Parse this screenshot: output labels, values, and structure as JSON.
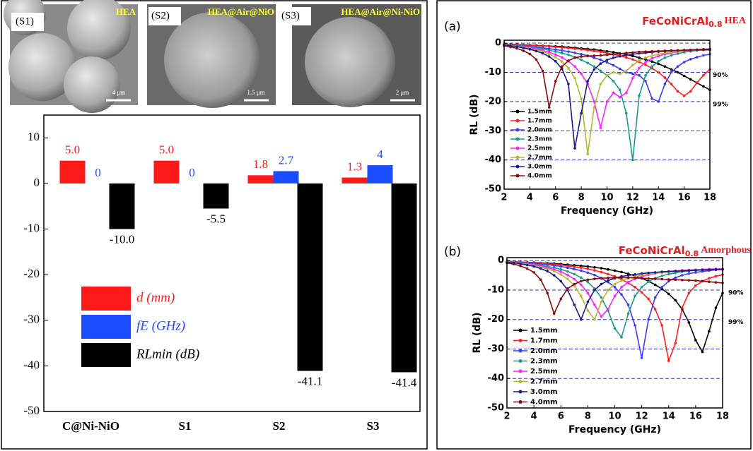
{
  "images": [
    {
      "label": "(S1)",
      "caption": "HEA",
      "scale": "4 μm"
    },
    {
      "label": "(S2)",
      "caption": "HEA@Air@NiO",
      "scale": "1.5 μm"
    },
    {
      "label": "(S3)",
      "caption": "HEA@Air@Ni-NiO",
      "scale": "2 μm"
    }
  ],
  "chart_data": [
    {
      "type": "bar",
      "categories": [
        "C@Ni-NiO",
        "S1",
        "S2",
        "S3"
      ],
      "ylim": [
        -50,
        15
      ],
      "yticks": [
        -50,
        -40,
        -30,
        -20,
        -10,
        0,
        10
      ],
      "grid": false,
      "legend": "lower-left",
      "series": [
        {
          "name": "d (mm)",
          "color": "#ff1a1a",
          "values": [
            5.0,
            5.0,
            1.8,
            1.3
          ],
          "value_labels": [
            "5.0",
            "5.0",
            "1.8",
            "1.3"
          ]
        },
        {
          "name": "fE (GHz)",
          "color": "#1a4dff",
          "values": [
            0,
            0,
            2.7,
            4
          ]
        },
        {
          "name": "RLmin (dB)",
          "color": "#000000",
          "values": [
            -10.0,
            -5.5,
            -41.1,
            -41.4
          ],
          "value_labels": [
            "-10.0",
            "-5.5",
            "-41.1",
            "-41.4"
          ]
        }
      ]
    },
    {
      "type": "line",
      "panel": "(a)",
      "title": "FeCoNiCrAl",
      "title_sub": "0.8",
      "title_suffix": "HEA",
      "xlabel": "Frequency (GHz)",
      "ylabel": "RL (dB)",
      "annotations": [
        "90%",
        "99%"
      ],
      "xlim": [
        2,
        18
      ],
      "xticks": [
        2,
        4,
        6,
        8,
        10,
        12,
        14,
        16,
        18
      ],
      "ylim": [
        -50,
        1
      ],
      "yticks": [
        0,
        -10,
        -20,
        -30,
        -40,
        -50
      ],
      "grid": true,
      "grid_color": "#3333cc",
      "x": [
        2,
        2.5,
        3,
        3.5,
        4,
        4.5,
        5,
        5.5,
        6,
        6.5,
        7,
        7.5,
        8,
        8.5,
        9,
        9.5,
        10,
        10.5,
        11,
        11.5,
        12,
        12.5,
        13,
        13.5,
        14,
        14.5,
        15,
        15.5,
        16,
        16.5,
        17,
        17.5,
        18
      ],
      "series": [
        {
          "name": "1.5mm",
          "color": "#000000",
          "values": [
            -0.3,
            -0.4,
            -0.5,
            -0.6,
            -0.7,
            -0.8,
            -0.9,
            -1,
            -1.1,
            -1.2,
            -1.4,
            -1.6,
            -1.8,
            -2,
            -2.2,
            -2.5,
            -2.8,
            -3.1,
            -3.5,
            -3.9,
            -4.4,
            -5,
            -5.6,
            -6.3,
            -7.1,
            -8,
            -9,
            -10,
            -11.2,
            -12.4,
            -13.6,
            -14.8,
            -16
          ]
        },
        {
          "name": "1.7mm",
          "color": "#ff2020",
          "values": [
            -0.4,
            -0.5,
            -0.6,
            -0.7,
            -0.8,
            -0.9,
            -1,
            -1.1,
            -1.3,
            -1.5,
            -1.7,
            -1.9,
            -2.1,
            -2.4,
            -2.7,
            -3,
            -3.4,
            -3.8,
            -4.3,
            -4.9,
            -5.6,
            -6.4,
            -7.4,
            -8.6,
            -10,
            -11.8,
            -14,
            -16.5,
            -18,
            -16.5,
            -13.5,
            -11,
            -9
          ]
        },
        {
          "name": "2.0mm",
          "color": "#3a3aff",
          "values": [
            -0.5,
            -0.6,
            -0.8,
            -1,
            -1.2,
            -1.4,
            -1.6,
            -1.9,
            -2.2,
            -2.5,
            -2.9,
            -3.3,
            -3.8,
            -4.3,
            -5,
            -5.7,
            -6.6,
            -7.6,
            -8.8,
            -10,
            -10.5,
            -11,
            -13,
            -19,
            -20,
            -14,
            -10,
            -8,
            -6.5,
            -5.5,
            -4.8,
            -4.2,
            -3.8
          ]
        },
        {
          "name": "2.3mm",
          "color": "#1a9a8a",
          "values": [
            -0.5,
            -0.7,
            -0.9,
            -1.1,
            -1.4,
            -1.7,
            -2,
            -2.4,
            -2.9,
            -3.4,
            -4,
            -4.8,
            -5.7,
            -6.8,
            -8,
            -9.5,
            -11,
            -13,
            -16,
            -24,
            -40,
            -18,
            -11,
            -8,
            -6.2,
            -5,
            -4.2,
            -3.6,
            -3.1,
            -2.8,
            -2.5,
            -2.3,
            -2.1
          ]
        },
        {
          "name": "2.5mm",
          "color": "#ff20ff",
          "values": [
            -0.6,
            -0.8,
            -1,
            -1.3,
            -1.6,
            -2,
            -2.5,
            -3.1,
            -3.9,
            -4.9,
            -6.2,
            -8,
            -10.5,
            -14,
            -20,
            -29,
            -20,
            -17,
            -18.5,
            -17,
            -12,
            -8.5,
            -6.5,
            -5.2,
            -4.4,
            -3.8,
            -3.3,
            -3,
            -2.7,
            -2.5,
            -2.3,
            -2.2,
            -2.1
          ]
        },
        {
          "name": "2.7mm",
          "color": "#b5b536",
          "values": [
            -0.6,
            -0.8,
            -1.1,
            -1.4,
            -1.8,
            -2.3,
            -2.9,
            -3.7,
            -4.8,
            -6.3,
            -8.5,
            -12,
            -19,
            -38,
            -22,
            -14,
            -11,
            -10,
            -10.5,
            -9.5,
            -7.5,
            -6,
            -5,
            -4.3,
            -3.8,
            -3.4,
            -3.1,
            -2.8,
            -2.6,
            -2.4,
            -2.3,
            -2.2,
            -2.1
          ]
        },
        {
          "name": "3.0mm",
          "color": "#1a1a8c",
          "values": [
            -0.7,
            -0.9,
            -1.2,
            -1.6,
            -2.1,
            -2.7,
            -3.5,
            -4.6,
            -6.2,
            -8.8,
            -14,
            -36,
            -24,
            -13,
            -9,
            -7,
            -5.8,
            -5,
            -4.5,
            -4.1,
            -3.8,
            -3.5,
            -3.3,
            -3.1,
            -2.9,
            -2.8,
            -2.6,
            -2.5,
            -2.4,
            -2.3,
            -2.2,
            -2.1,
            -2
          ]
        },
        {
          "name": "4.0mm",
          "color": "#8b0a0a",
          "values": [
            -0.9,
            -1.3,
            -1.8,
            -2.6,
            -3.7,
            -5.6,
            -9.5,
            -22,
            -13,
            -8,
            -6,
            -5,
            -4.6,
            -4.4,
            -4.3,
            -4.2,
            -4,
            -3.8,
            -3.6,
            -3.4,
            -3.2,
            -3,
            -2.9,
            -2.8,
            -2.7,
            -2.6,
            -2.5,
            -2.5,
            -2.4,
            -2.4,
            -2.3,
            -2.3,
            -2.3
          ]
        }
      ]
    },
    {
      "type": "line",
      "panel": "(b)",
      "title": "FeCoNiCrAl",
      "title_sub": "0.8",
      "title_suffix": "Amorphous",
      "xlabel": "Frequency (GHz)",
      "ylabel": "RL (dB)",
      "annotations": [
        "90%",
        "99%"
      ],
      "xlim": [
        2,
        18
      ],
      "xticks": [
        2,
        4,
        6,
        8,
        10,
        12,
        14,
        16,
        18
      ],
      "ylim": [
        -50,
        1
      ],
      "yticks": [
        0,
        -10,
        -20,
        -30,
        -40,
        -50
      ],
      "grid": true,
      "grid_color": "#3333cc",
      "x": [
        2,
        2.5,
        3,
        3.5,
        4,
        4.5,
        5,
        5.5,
        6,
        6.5,
        7,
        7.5,
        8,
        8.5,
        9,
        9.5,
        10,
        10.5,
        11,
        11.5,
        12,
        12.5,
        13,
        13.5,
        14,
        14.5,
        15,
        15.5,
        16,
        16.5,
        17,
        17.5,
        18
      ],
      "series": [
        {
          "name": "1.5mm",
          "color": "#000000",
          "values": [
            -0.3,
            -0.4,
            -0.5,
            -0.6,
            -0.7,
            -0.8,
            -0.9,
            -1,
            -1.2,
            -1.4,
            -1.6,
            -1.8,
            -2,
            -2.3,
            -2.6,
            -3,
            -3.4,
            -3.9,
            -4.5,
            -5.2,
            -6,
            -7,
            -8.2,
            -9.6,
            -11.3,
            -13.5,
            -16.5,
            -21,
            -27,
            -31,
            -24,
            -16,
            -11
          ]
        },
        {
          "name": "1.7mm",
          "color": "#ff2020",
          "values": [
            -0.3,
            -0.4,
            -0.5,
            -0.6,
            -0.8,
            -0.9,
            -1.1,
            -1.3,
            -1.5,
            -1.8,
            -2.1,
            -2.4,
            -2.8,
            -3.3,
            -3.9,
            -4.6,
            -5.4,
            -6.4,
            -7.6,
            -9,
            -10.8,
            -13,
            -16.5,
            -22,
            -34,
            -28,
            -16,
            -11,
            -8.5,
            -7,
            -6,
            -5.3,
            -4.8
          ]
        },
        {
          "name": "2.0mm",
          "color": "#3a3aff",
          "values": [
            -0.4,
            -0.5,
            -0.6,
            -0.8,
            -1,
            -1.2,
            -1.4,
            -1.7,
            -2,
            -2.4,
            -2.9,
            -3.4,
            -4.1,
            -4.9,
            -6,
            -7.3,
            -9,
            -11.5,
            -15,
            -22,
            -33,
            -20,
            -12.5,
            -9,
            -7,
            -5.8,
            -5,
            -4.4,
            -4,
            -3.7,
            -3.4,
            -3.2,
            -3
          ]
        },
        {
          "name": "2.3mm",
          "color": "#1a9a8a",
          "values": [
            -0.4,
            -0.6,
            -0.8,
            -1,
            -1.3,
            -1.6,
            -2,
            -2.4,
            -3,
            -3.7,
            -4.6,
            -5.8,
            -7.3,
            -9.5,
            -12.5,
            -17,
            -23,
            -26,
            -18,
            -12,
            -9,
            -7.2,
            -6,
            -5.2,
            -4.6,
            -4.2,
            -3.8,
            -3.5,
            -3.3,
            -3.1,
            -3,
            -2.9,
            -2.8
          ]
        },
        {
          "name": "2.5mm",
          "color": "#ff20ff",
          "values": [
            -0.5,
            -0.7,
            -0.9,
            -1.2,
            -1.5,
            -1.9,
            -2.4,
            -3,
            -3.8,
            -4.9,
            -6.3,
            -8.2,
            -11,
            -15,
            -19,
            -16.5,
            -12,
            -9,
            -7.3,
            -6.2,
            -5.4,
            -4.8,
            -4.4,
            -4,
            -3.7,
            -3.5,
            -3.3,
            -3.2,
            -3.1,
            -3,
            -2.9,
            -2.8,
            -2.8
          ]
        },
        {
          "name": "2.7mm",
          "color": "#b5b536",
          "values": [
            -0.5,
            -0.7,
            -1,
            -1.3,
            -1.7,
            -2.2,
            -2.8,
            -3.6,
            -4.7,
            -6.2,
            -8.5,
            -12,
            -17,
            -20,
            -14,
            -10,
            -8,
            -6.8,
            -6,
            -5.4,
            -5,
            -4.6,
            -4.3,
            -4.1,
            -3.9,
            -3.7,
            -3.5,
            -3.4,
            -3.3,
            -3.2,
            -3.1,
            -3,
            -3
          ]
        },
        {
          "name": "3.0mm",
          "color": "#1a1a8c",
          "values": [
            -0.6,
            -0.8,
            -1.1,
            -1.5,
            -2,
            -2.7,
            -3.6,
            -5,
            -7,
            -10,
            -15,
            -20,
            -14,
            -10,
            -8,
            -6.8,
            -6,
            -5.4,
            -5,
            -4.7,
            -4.4,
            -4.2,
            -4,
            -3.8,
            -3.7,
            -3.6,
            -3.5,
            -3.4,
            -3.3,
            -3.2,
            -3.1,
            -3,
            -3
          ]
        },
        {
          "name": "4.0mm",
          "color": "#8b0a0a",
          "values": [
            -0.8,
            -1.2,
            -1.8,
            -2.7,
            -4,
            -6.5,
            -11,
            -18,
            -13,
            -9.5,
            -8,
            -7,
            -6.5,
            -6.2,
            -6,
            -5.9,
            -5.8,
            -5.8,
            -5.8,
            -5.9,
            -6,
            -6.1,
            -6.2,
            -6.3,
            -6.4,
            -6.5,
            -6.6,
            -6.7,
            -6.8,
            -7,
            -7.2,
            -7.4,
            -7.6
          ]
        }
      ]
    }
  ]
}
